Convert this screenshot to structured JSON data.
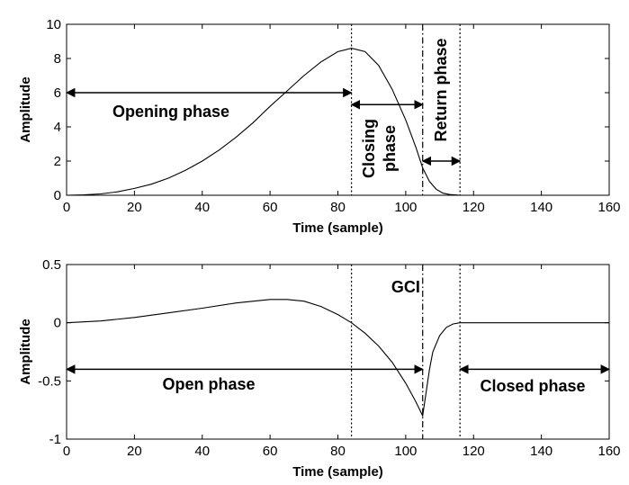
{
  "chart_data": [
    {
      "type": "line",
      "xlabel": "Time (sample)",
      "ylabel": "Amplitude",
      "xlim": [
        0,
        160
      ],
      "ylim": [
        0,
        10
      ],
      "xticks": [
        0,
        20,
        40,
        60,
        80,
        100,
        120,
        140,
        160
      ],
      "yticks": [
        0,
        2,
        4,
        6,
        8,
        10
      ],
      "grid": false,
      "series": [
        {
          "x": [
            0,
            5,
            10,
            15,
            20,
            25,
            30,
            35,
            40,
            45,
            50,
            55,
            60,
            65,
            70,
            75,
            80,
            84,
            88,
            92,
            96,
            100,
            103,
            105,
            107,
            109,
            111,
            113,
            116,
            120,
            140,
            160
          ],
          "y": [
            0,
            0.02,
            0.08,
            0.2,
            0.4,
            0.65,
            1.0,
            1.45,
            2.0,
            2.65,
            3.4,
            4.25,
            5.2,
            6.1,
            7.0,
            7.8,
            8.4,
            8.6,
            8.4,
            7.6,
            6.2,
            4.4,
            2.8,
            1.6,
            0.8,
            0.35,
            0.12,
            0.04,
            0,
            0,
            0,
            0
          ]
        }
      ],
      "vlines": [
        {
          "x": 84,
          "style": "dotted"
        },
        {
          "x": 105,
          "style": "dashdot"
        },
        {
          "x": 116,
          "style": "dotted"
        }
      ],
      "annotations": [
        {
          "text": "Opening phase",
          "arrow_from": 0,
          "arrow_to": 84,
          "y": 6
        },
        {
          "text": "Closing phase",
          "line1": "Closing",
          "line2": "phase",
          "arrow_from": 84,
          "arrow_to": 105,
          "y": 5.3
        },
        {
          "text": "Return phase",
          "arrow_from": 105,
          "arrow_to": 116,
          "y": 2
        }
      ]
    },
    {
      "type": "line",
      "xlabel": "Time (sample)",
      "ylabel": "Amplitude",
      "xlim": [
        0,
        160
      ],
      "ylim": [
        -1,
        0.5
      ],
      "xticks": [
        0,
        20,
        40,
        60,
        80,
        100,
        120,
        140,
        160
      ],
      "yticks": [
        -1,
        -0.5,
        0,
        0.5
      ],
      "grid": false,
      "series": [
        {
          "x": [
            0,
            10,
            20,
            30,
            40,
            50,
            60,
            65,
            70,
            75,
            80,
            84,
            88,
            92,
            96,
            100,
            103,
            105,
            106,
            107,
            108,
            110,
            112,
            114,
            116,
            120,
            140,
            160
          ],
          "y": [
            0,
            0.015,
            0.045,
            0.085,
            0.125,
            0.17,
            0.2,
            0.2,
            0.185,
            0.14,
            0.07,
            0.0,
            -0.09,
            -0.2,
            -0.34,
            -0.52,
            -0.68,
            -0.8,
            -0.6,
            -0.4,
            -0.25,
            -0.11,
            -0.04,
            -0.01,
            0,
            0,
            0,
            0
          ]
        }
      ],
      "vlines": [
        {
          "x": 84,
          "style": "dotted"
        },
        {
          "x": 105,
          "style": "dashdot"
        },
        {
          "x": 116,
          "style": "dotted"
        }
      ],
      "annotations": [
        {
          "text": "GCI",
          "x": 100,
          "y": 0.3
        },
        {
          "text": "Open phase",
          "arrow_from": 0,
          "arrow_to": 105,
          "y": -0.4
        },
        {
          "text": "Closed phase",
          "arrow_from": 116,
          "arrow_to": 160,
          "y": -0.4
        }
      ]
    }
  ]
}
